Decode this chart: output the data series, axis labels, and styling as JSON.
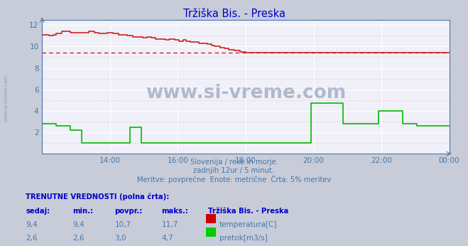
{
  "title": "Tržiška Bis. - Preska",
  "title_color": "#0000cc",
  "bg_color": "#c8ccd8",
  "plot_bg_color": "#f0f0f8",
  "tick_color": "#4477aa",
  "xlim": [
    0,
    288
  ],
  "ylim": [
    0,
    12.5
  ],
  "yticks": [
    2,
    4,
    6,
    8,
    10,
    12
  ],
  "xtick_labels": [
    "14:00",
    "16:00",
    "18:00",
    "20:00",
    "22:00",
    "00:00"
  ],
  "xtick_positions": [
    48,
    96,
    144,
    192,
    240,
    288
  ],
  "avg_line_value": 9.4,
  "avg_line_color": "#cc2222",
  "subtitle_lines": [
    "Slovenija / reke in morje.",
    "zadnjih 12ur / 5 minut.",
    "Meritve: povprečne  Enote: metrične  Črta: 5% meritev"
  ],
  "subtitle_color": "#4477aa",
  "table_header": "TRENUTNE VREDNOSTI (polna črta):",
  "table_col_headers": [
    "sedaj:",
    "min.:",
    "povpr.:",
    "maks.:",
    "Tržiška Bis. - Preska"
  ],
  "table_rows": [
    [
      "9,4",
      "9,4",
      "10,7",
      "11,7",
      "temperatura[C]",
      "#cc0000"
    ],
    [
      "2,6",
      "2,6",
      "3,0",
      "4,7",
      "pretok[m3/s]",
      "#00cc00"
    ]
  ],
  "temp_color": "#cc2222",
  "flow_color": "#00bb00",
  "watermark_text": "www.si-vreme.com",
  "watermark_color": "#1a3a6b",
  "watermark_alpha": 0.3,
  "side_watermark_color": "#4477aa",
  "side_watermark_alpha": 0.5
}
